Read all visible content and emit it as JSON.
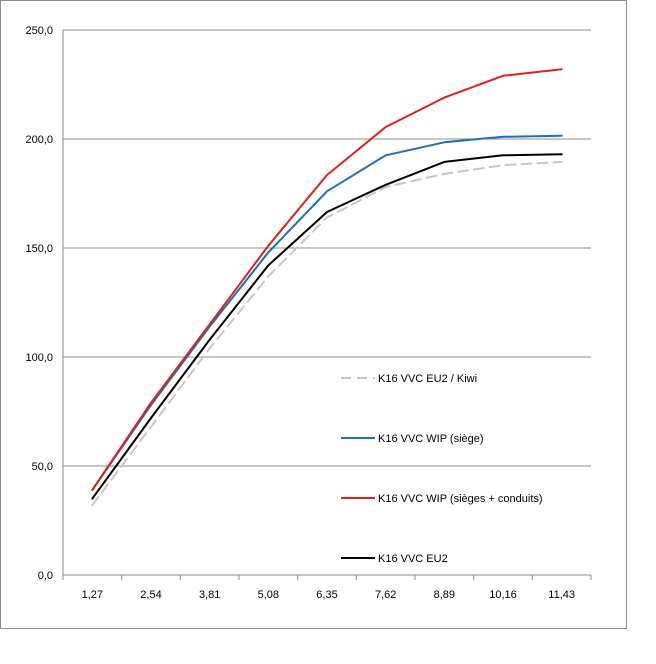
{
  "chart_data": {
    "type": "line",
    "title": "",
    "xlabel": "",
    "ylabel": "",
    "x": [
      "1,27",
      "2,54",
      "3,81",
      "5,08",
      "6,35",
      "7,62",
      "8,89",
      "10,16",
      "11,43"
    ],
    "ylim": [
      0,
      250
    ],
    "y_tick_values": [
      0,
      50,
      100,
      150,
      200,
      250
    ],
    "y_tick_labels": [
      "0,0",
      "50,0",
      "100,0",
      "150,0",
      "200,0",
      "250,0"
    ],
    "grid": "horizontal",
    "legend_position": "right, inside plot",
    "series": [
      {
        "name": "K16 VVC EU2 / Kiwi",
        "color": "#c8c8c8",
        "dash": true,
        "values": [
          32,
          68,
          104,
          137,
          164,
          178,
          184,
          188,
          189.5
        ]
      },
      {
        "name": "K16 VVC WIP (siège)",
        "color": "#1f6fb4",
        "dash": false,
        "values": [
          39,
          78,
          114,
          148,
          176,
          192.5,
          198.5,
          201,
          201.5
        ]
      },
      {
        "name": "K16 VVC WIP (sièges + conduits)",
        "color": "#e0201b",
        "dash": false,
        "values": [
          39,
          79,
          115,
          151,
          183.5,
          205.5,
          219,
          229,
          232
        ]
      },
      {
        "name": "K16 VVC EU2",
        "color": "#000000",
        "dash": false,
        "values": [
          35,
          72,
          108,
          142,
          166.5,
          179,
          189.5,
          192.5,
          193
        ]
      }
    ]
  }
}
